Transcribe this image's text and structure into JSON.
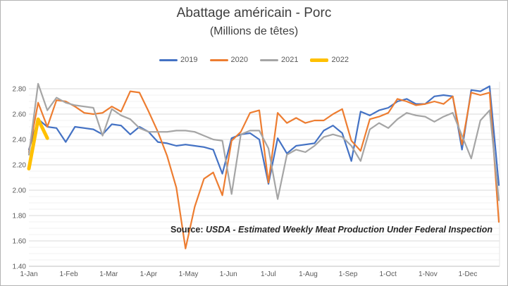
{
  "chart": {
    "source": {
      "prefix": "Source:",
      "text": "USDA - Estimated Weekly Meat Production Under Federal Inspection"
    }
  },
  "chart_data": {
    "type": "line",
    "title": "Abattage américain - Porc",
    "subtitle": "(Millions de têtes)",
    "legend_position": "top",
    "grid": "horizontal major + minor",
    "x_axis": {
      "tick_labels": [
        "1-Jan",
        "1-Feb",
        "1-Mar",
        "1-Apr",
        "1-May",
        "1-Jun",
        "1-Jul",
        "1-Aug",
        "1-Sep",
        "1-Oct",
        "1-Nov",
        "1-Dec"
      ],
      "points_per_series": "weekly (52 weeks)"
    },
    "y_axis": {
      "min": 1.4,
      "max": 2.8,
      "major_step": 0.2,
      "minor_step": 0.05,
      "tick_labels": [
        "1.40",
        "1.60",
        "1.80",
        "2.00",
        "2.20",
        "2.40",
        "2.60",
        "2.80"
      ]
    },
    "series": [
      {
        "name": "2019",
        "color": "#4472C4",
        "line_width": 2.2,
        "values": [
          2.32,
          2.56,
          2.5,
          2.49,
          2.38,
          2.5,
          2.49,
          2.48,
          2.44,
          2.52,
          2.51,
          2.44,
          2.5,
          2.46,
          2.38,
          2.37,
          2.35,
          2.36,
          2.35,
          2.34,
          2.32,
          2.13,
          2.41,
          2.44,
          2.45,
          2.4,
          2.05,
          2.41,
          2.29,
          2.35,
          2.36,
          2.37,
          2.47,
          2.51,
          2.45,
          2.23,
          2.62,
          2.59,
          2.63,
          2.65,
          2.7,
          2.72,
          2.68,
          2.68,
          2.74,
          2.75,
          2.74,
          2.32,
          2.79,
          2.78,
          2.82,
          2.04
        ]
      },
      {
        "name": "2020",
        "color": "#ED7D31",
        "line_width": 2.2,
        "values": [
          2.3,
          2.69,
          2.5,
          2.71,
          2.7,
          2.66,
          2.61,
          2.6,
          2.61,
          2.66,
          2.62,
          2.78,
          2.77,
          2.62,
          2.46,
          2.27,
          2.02,
          1.54,
          1.87,
          2.09,
          2.14,
          1.96,
          2.39,
          2.46,
          2.61,
          2.63,
          2.06,
          2.61,
          2.53,
          2.57,
          2.53,
          2.55,
          2.55,
          2.6,
          2.64,
          2.39,
          2.31,
          2.56,
          2.58,
          2.61,
          2.72,
          2.7,
          2.67,
          2.68,
          2.7,
          2.68,
          2.74,
          2.36,
          2.77,
          2.75,
          2.77,
          1.75
        ]
      },
      {
        "name": "2021",
        "color": "#A5A5A5",
        "line_width": 2.2,
        "values": [
          2.28,
          2.84,
          2.63,
          2.73,
          2.69,
          2.67,
          2.66,
          2.65,
          2.43,
          2.64,
          2.59,
          2.56,
          2.49,
          2.46,
          2.46,
          2.46,
          2.47,
          2.47,
          2.46,
          2.43,
          2.4,
          2.39,
          1.97,
          2.44,
          2.47,
          2.47,
          2.33,
          1.93,
          2.28,
          2.32,
          2.3,
          2.35,
          2.42,
          2.44,
          2.42,
          2.35,
          2.23,
          2.48,
          2.53,
          2.49,
          2.56,
          2.61,
          2.59,
          2.58,
          2.54,
          2.58,
          2.61,
          2.43,
          2.25,
          2.55,
          2.63,
          1.92
        ]
      },
      {
        "name": "2022",
        "color": "#FFC000",
        "line_width": 5,
        "values": [
          2.17,
          2.56,
          2.41
        ]
      }
    ],
    "annotations": [
      {
        "text": "Source: USDA - Estimated Weekly Meat Production Under Federal Inspection",
        "position": "bottom-right"
      }
    ]
  }
}
